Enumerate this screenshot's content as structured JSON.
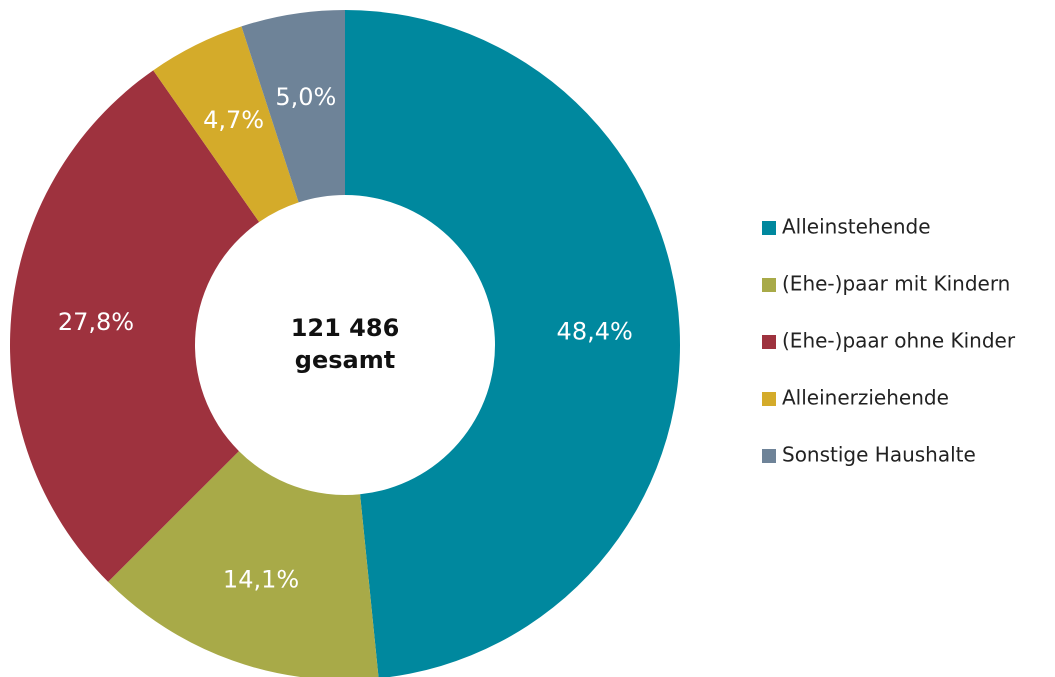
{
  "chart_data": {
    "type": "donut",
    "categories": [
      "Alleinstehende",
      "(Ehe-)paar mit Kindern",
      "(Ehe-)paar ohne Kinder",
      "Alleinerziehende",
      "Sonstige Haushalte"
    ],
    "values": [
      48.4,
      14.1,
      27.8,
      4.7,
      5.0
    ],
    "value_labels": [
      "48,4%",
      "14,1%",
      "27,8%",
      "4,7%",
      "5,0%"
    ],
    "colors": [
      "#00889e",
      "#a8aa48",
      "#9e323e",
      "#d4ab2a",
      "#6e8398"
    ],
    "center_label": [
      "121 486",
      "gesamt"
    ],
    "legend": "right"
  }
}
